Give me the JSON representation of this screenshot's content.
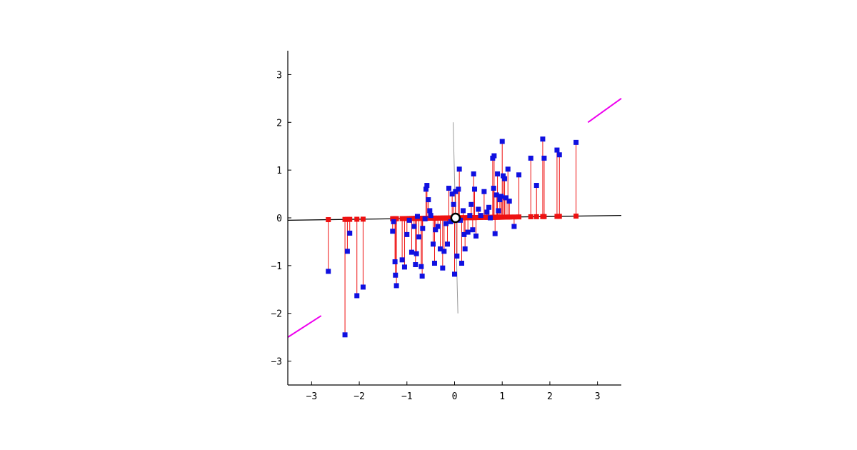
{
  "chart_data": {
    "type": "scatter",
    "title": "",
    "xlabel": "",
    "ylabel": "",
    "xlim": [
      -3.5,
      3.5
    ],
    "ylim": [
      -3.5,
      3.5
    ],
    "xticks": [
      -3,
      -2,
      -1,
      0,
      1,
      2,
      3
    ],
    "yticks": [
      -3,
      -2,
      -1,
      0,
      1,
      2,
      3
    ],
    "xtick_labels": [
      "−3",
      "−2",
      "−1",
      "0",
      "1",
      "2",
      "3"
    ],
    "ytick_labels": [
      "−3",
      "−2",
      "−1",
      "0",
      "1",
      "2",
      "3"
    ],
    "grid": false,
    "colors": {
      "points": "#1010e0",
      "projections": "#ee1111",
      "principal_axis": "#000000",
      "minor_axis": "#999999",
      "diagonal": "#ee00ee",
      "mean_marker": "#000000"
    },
    "principal_axis": {
      "x": [
        -3.5,
        3.5
      ],
      "y": [
        -0.05,
        0.05
      ]
    },
    "minor_axis": {
      "x": [
        -0.03,
        0.07
      ],
      "y": [
        2.0,
        -2.0
      ]
    },
    "diagonal_segments": [
      {
        "x": [
          -3.5,
          -2.8
        ],
        "y": [
          -2.5,
          -2.05
        ]
      },
      {
        "x": [
          2.8,
          3.5
        ],
        "y": [
          2.0,
          2.5
        ]
      }
    ],
    "mean_point": {
      "x": 0.02,
      "y": 0.0
    },
    "points": [
      {
        "x": -2.65,
        "y": -1.12,
        "px": -2.65
      },
      {
        "x": -2.3,
        "y": -2.45,
        "px": -2.3
      },
      {
        "x": -2.25,
        "y": -0.7,
        "px": -2.25
      },
      {
        "x": -2.2,
        "y": -0.32,
        "px": -2.2
      },
      {
        "x": -2.05,
        "y": -1.63,
        "px": -2.05
      },
      {
        "x": -1.92,
        "y": -1.45,
        "px": -1.92
      },
      {
        "x": -1.3,
        "y": -0.28,
        "px": -1.3
      },
      {
        "x": -1.28,
        "y": -0.08,
        "px": -1.28
      },
      {
        "x": -1.25,
        "y": -0.92,
        "px": -1.25
      },
      {
        "x": -1.24,
        "y": -1.2,
        "px": -1.24
      },
      {
        "x": -1.22,
        "y": -1.42,
        "px": -1.22
      },
      {
        "x": -1.1,
        "y": -0.88,
        "px": -1.1
      },
      {
        "x": -1.05,
        "y": -1.03,
        "px": -1.05
      },
      {
        "x": -1.0,
        "y": -0.35,
        "px": -1.0
      },
      {
        "x": -0.95,
        "y": -0.05,
        "px": -0.95
      },
      {
        "x": -0.9,
        "y": -0.72,
        "px": -0.9
      },
      {
        "x": -0.85,
        "y": -0.18,
        "px": -0.85
      },
      {
        "x": -0.82,
        "y": -0.98,
        "px": -0.82
      },
      {
        "x": -0.8,
        "y": -0.75,
        "px": -0.8
      },
      {
        "x": -0.78,
        "y": 0.03,
        "px": -0.78
      },
      {
        "x": -0.75,
        "y": -0.4,
        "px": -0.75
      },
      {
        "x": -0.7,
        "y": -1.02,
        "px": -0.7
      },
      {
        "x": -0.68,
        "y": -1.22,
        "px": -0.68
      },
      {
        "x": -0.67,
        "y": -0.22,
        "px": -0.67
      },
      {
        "x": -0.62,
        "y": -0.02,
        "px": -0.62
      },
      {
        "x": -0.6,
        "y": 0.6,
        "px": -0.6
      },
      {
        "x": -0.58,
        "y": 0.68,
        "px": -0.58
      },
      {
        "x": -0.55,
        "y": 0.38,
        "px": -0.55
      },
      {
        "x": -0.52,
        "y": 0.15,
        "px": -0.52
      },
      {
        "x": -0.5,
        "y": 0.05,
        "px": -0.5
      },
      {
        "x": -0.45,
        "y": -0.55,
        "px": -0.45
      },
      {
        "x": -0.42,
        "y": -0.95,
        "px": -0.42
      },
      {
        "x": -0.4,
        "y": -0.25,
        "px": -0.4
      },
      {
        "x": -0.35,
        "y": -0.18,
        "px": -0.35
      },
      {
        "x": -0.3,
        "y": -0.65,
        "px": -0.3
      },
      {
        "x": -0.25,
        "y": -1.05,
        "px": -0.25
      },
      {
        "x": -0.22,
        "y": -0.7,
        "px": -0.22
      },
      {
        "x": -0.18,
        "y": -0.12,
        "px": -0.18
      },
      {
        "x": -0.15,
        "y": -0.55,
        "px": -0.15
      },
      {
        "x": -0.12,
        "y": 0.62,
        "px": -0.12
      },
      {
        "x": -0.08,
        "y": -0.08,
        "px": -0.08
      },
      {
        "x": -0.05,
        "y": 0.5,
        "px": -0.05
      },
      {
        "x": -0.02,
        "y": 0.28,
        "px": -0.02
      },
      {
        "x": 0.0,
        "y": -1.18,
        "px": 0.0
      },
      {
        "x": 0.02,
        "y": 0.55,
        "px": 0.02
      },
      {
        "x": 0.05,
        "y": -0.8,
        "px": 0.05
      },
      {
        "x": 0.08,
        "y": 0.6,
        "px": 0.08
      },
      {
        "x": 0.1,
        "y": 1.02,
        "px": 0.1
      },
      {
        "x": 0.12,
        "y": -0.05,
        "px": 0.12
      },
      {
        "x": 0.15,
        "y": -0.95,
        "px": 0.15
      },
      {
        "x": 0.18,
        "y": 0.15,
        "px": 0.18
      },
      {
        "x": 0.2,
        "y": -0.35,
        "px": 0.2
      },
      {
        "x": 0.22,
        "y": -0.65,
        "px": 0.22
      },
      {
        "x": 0.28,
        "y": -0.3,
        "px": 0.28
      },
      {
        "x": 0.32,
        "y": 0.05,
        "px": 0.32
      },
      {
        "x": 0.35,
        "y": 0.28,
        "px": 0.35
      },
      {
        "x": 0.38,
        "y": -0.25,
        "px": 0.38
      },
      {
        "x": 0.4,
        "y": 0.92,
        "px": 0.4
      },
      {
        "x": 0.42,
        "y": 0.6,
        "px": 0.42
      },
      {
        "x": 0.45,
        "y": -0.38,
        "px": 0.45
      },
      {
        "x": 0.5,
        "y": 0.18,
        "px": 0.5
      },
      {
        "x": 0.55,
        "y": 0.05,
        "px": 0.55
      },
      {
        "x": 0.62,
        "y": 0.55,
        "px": 0.62
      },
      {
        "x": 0.68,
        "y": 0.12,
        "px": 0.68
      },
      {
        "x": 0.72,
        "y": 0.22,
        "px": 0.72
      },
      {
        "x": 0.75,
        "y": 0.0,
        "px": 0.75
      },
      {
        "x": 0.8,
        "y": 1.25,
        "px": 0.8
      },
      {
        "x": 0.82,
        "y": 0.62,
        "px": 0.82
      },
      {
        "x": 0.83,
        "y": 1.3,
        "px": 0.83
      },
      {
        "x": 0.85,
        "y": -0.33,
        "px": 0.85
      },
      {
        "x": 0.88,
        "y": 0.48,
        "px": 0.88
      },
      {
        "x": 0.9,
        "y": 0.92,
        "px": 0.9
      },
      {
        "x": 0.92,
        "y": 0.15,
        "px": 0.92
      },
      {
        "x": 0.95,
        "y": 0.38,
        "px": 0.95
      },
      {
        "x": 0.98,
        "y": 0.45,
        "px": 0.98
      },
      {
        "x": 1.0,
        "y": 1.6,
        "px": 1.0
      },
      {
        "x": 1.02,
        "y": 0.88,
        "px": 1.02
      },
      {
        "x": 1.05,
        "y": 0.82,
        "px": 1.05
      },
      {
        "x": 1.08,
        "y": 0.42,
        "px": 1.08
      },
      {
        "x": 1.12,
        "y": 1.02,
        "px": 1.12
      },
      {
        "x": 1.15,
        "y": 0.35,
        "px": 1.15
      },
      {
        "x": 1.25,
        "y": -0.18,
        "px": 1.25
      },
      {
        "x": 1.35,
        "y": 0.9,
        "px": 1.35
      },
      {
        "x": 1.6,
        "y": 1.25,
        "px": 1.6
      },
      {
        "x": 1.72,
        "y": 0.68,
        "px": 1.72
      },
      {
        "x": 1.85,
        "y": 1.65,
        "px": 1.85
      },
      {
        "x": 1.88,
        "y": 1.25,
        "px": 1.88
      },
      {
        "x": 2.15,
        "y": 1.42,
        "px": 2.15
      },
      {
        "x": 2.2,
        "y": 1.32,
        "px": 2.2
      },
      {
        "x": 2.55,
        "y": 1.58,
        "px": 2.55
      }
    ]
  }
}
